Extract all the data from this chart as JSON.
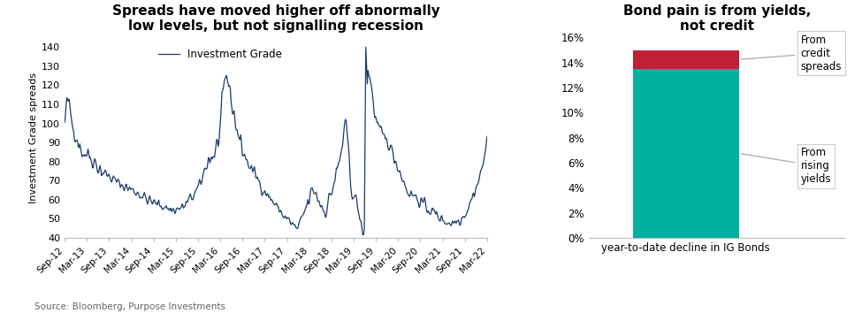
{
  "left_title": "Spreads have moved higher off abnormally\nlow levels, but not signalling recession",
  "right_title": "Bond pain is from yields,\nnot credit",
  "source_text": "Source: Bloomberg, Purpose Investments",
  "line_color": "#1a3a6b",
  "line_label": "Investment Grade",
  "ylabel_left": "Investment Grade spreads",
  "xlabel_right": "year-to-date decline in IG Bonds",
  "bar_yields_value": 13.5,
  "bar_credit_value": 1.5,
  "bar_yields_color": "#00b0a0",
  "bar_credit_color": "#bf2035",
  "annotation_credit": "From\ncredit\nspreads",
  "annotation_yields": "From\nrising\nyields",
  "ylim_left": [
    40,
    145
  ],
  "yticks_left": [
    40,
    50,
    60,
    70,
    80,
    90,
    100,
    110,
    120,
    130,
    140
  ],
  "ylim_right": [
    0,
    16
  ],
  "yticks_right_vals": [
    0,
    2,
    4,
    6,
    8,
    10,
    12,
    14,
    16
  ],
  "yticks_right_labels": [
    "0%",
    "2%",
    "4%",
    "6%",
    "8%",
    "10%",
    "12%",
    "14%",
    "16%"
  ],
  "x_tick_labels": [
    "Sep-12",
    "Mar-13",
    "Sep-13",
    "Mar-14",
    "Sep-14",
    "Mar-15",
    "Sep-15",
    "Mar-16",
    "Sep-16",
    "Mar-17",
    "Sep-17",
    "Mar-18",
    "Sep-18",
    "Mar-19",
    "Sep-19",
    "Mar-20",
    "Sep-20",
    "Mar-21",
    "Sep-21",
    "Mar-22"
  ]
}
